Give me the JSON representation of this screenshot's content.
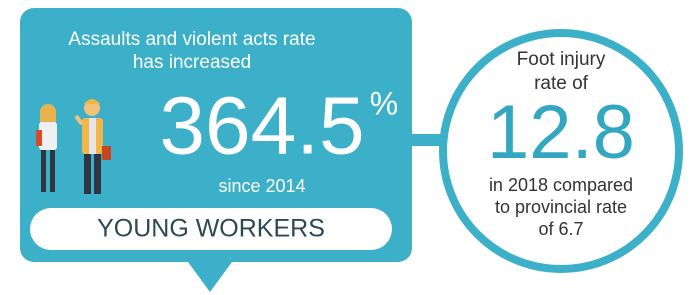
{
  "left_panel": {
    "headline": [
      "Assaults and violent acts rate",
      "has increased"
    ],
    "stat": "364.5",
    "stat_unit": "%",
    "since": "since 2014",
    "label": "YOUNG WORKERS"
  },
  "right_circle": {
    "heading": [
      "Foot injury",
      "rate of"
    ],
    "stat": "12.8",
    "detail": [
      "in 2018 compared",
      "to provincial rate",
      "of 6.7"
    ]
  }
}
